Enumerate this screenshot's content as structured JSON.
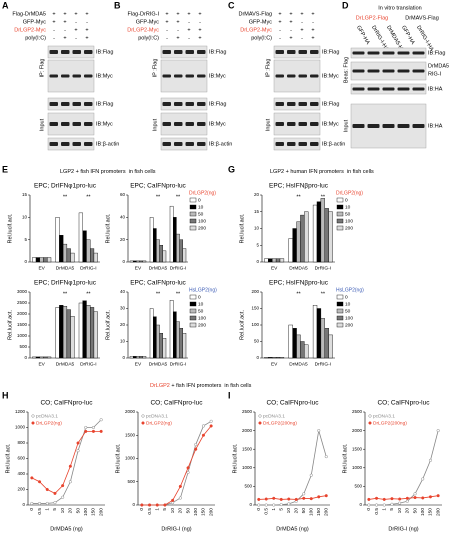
{
  "panel_letters": [
    "A",
    "B",
    "C",
    "D",
    "E",
    "G",
    "H",
    "I"
  ],
  "blots": [
    {
      "rows": [
        {
          "label": "Flag-DrMDA5",
          "signs": [
            "+",
            "+",
            "+",
            "+"
          ]
        },
        {
          "label": "GFP-Myc",
          "signs": [
            "+",
            "+",
            "-",
            "-"
          ]
        },
        {
          "label": "DrLGP2-Myc",
          "color": "#e8432d",
          "signs": [
            "-",
            "-",
            "+",
            "+"
          ]
        },
        {
          "label": "poly(I:C)",
          "signs": [
            "-",
            "+",
            "-",
            "+"
          ]
        }
      ],
      "side": [
        "IP: Flag",
        "Input"
      ],
      "ib": [
        "IB:Flag",
        "IB:Myc",
        "IB:Flag",
        "IB:Myc",
        "IB:β-actin"
      ]
    },
    {
      "rows": [
        {
          "label": "Flag-DrRIG-I",
          "signs": [
            "+",
            "+",
            "+",
            "+"
          ]
        },
        {
          "label": "GFP-Myc",
          "signs": [
            "+",
            "+",
            "-",
            "-"
          ]
        },
        {
          "label": "DrLGP2-Myc",
          "color": "#e8432d",
          "signs": [
            "-",
            "-",
            "+",
            "+"
          ]
        },
        {
          "label": "poly(I:C)",
          "signs": [
            "-",
            "+",
            "-",
            "+"
          ]
        }
      ],
      "side": [
        "IP :Flag",
        "Input"
      ],
      "ib": [
        "IB:Flag",
        "IB:Myc",
        "IB:Flag",
        "IB:Myc",
        "IB:β-actin"
      ]
    },
    {
      "rows": [
        {
          "label": "DrMAVS-Flag",
          "signs": [
            "+",
            "+",
            "+",
            "+"
          ]
        },
        {
          "label": "GFP-Myc",
          "signs": [
            "+",
            "+",
            "-",
            "-"
          ]
        },
        {
          "label": "DrLGP2-Myc",
          "color": "#e8432d",
          "signs": [
            "-",
            "-",
            "+",
            "+"
          ]
        },
        {
          "label": "poly(I:C)",
          "signs": [
            "-",
            "+",
            "-",
            "+"
          ]
        }
      ],
      "side": [
        "IP :Flag",
        "Input"
      ],
      "ib": [
        "IB:Flag",
        "IB:Myc",
        "IB:Flag",
        "IB:Myc",
        "IB:β-actin"
      ]
    }
  ],
  "translation": {
    "title": "In vitro translation",
    "groups": [
      {
        "text": "DrLGP2-Flag",
        "color": "#e8432d"
      },
      {
        "text": "DrMAVS-Flag",
        "color": "#000000"
      }
    ],
    "columns": [
      "GFP-HA",
      "DrRIG-I-HA",
      "DrMDA5-HA",
      "GFP-HA",
      "DrRIG-I-HA"
    ],
    "ib": [
      "IB:Flag",
      "DrMDA5",
      "RIG-I",
      "IB:HA",
      "IB:HA"
    ],
    "side": [
      "Beas: Flag",
      "Input"
    ]
  },
  "sections": [
    {
      "text": "LGP2 + fish IFN promoters  in fish cells"
    },
    {
      "text": "LGP2 + human IFN promoters  in fish cells"
    },
    {
      "highlight": "DrLGP2",
      "text": " + fish IFN promoters  in fish cells"
    }
  ],
  "chart_data": [
    {
      "type": "bar",
      "title": "EPC; DrIFNφ1pro-luc",
      "ylabel": "Rel.lucif.act.",
      "categories": [
        "EV",
        "DrMDA5",
        "DrRIG-I"
      ],
      "ylim": [
        0,
        15
      ],
      "yticks": [
        0,
        5,
        10,
        15
      ],
      "annotations": [
        "**",
        "**"
      ],
      "series": [
        {
          "color": "#ffffff",
          "values": [
            1,
            10,
            11
          ]
        },
        {
          "color": "#000000",
          "values": [
            1,
            6,
            7
          ]
        },
        {
          "color": "#bbbbbb",
          "values": [
            1,
            4,
            5
          ]
        },
        {
          "color": "#777777",
          "values": [
            1,
            3,
            3
          ]
        },
        {
          "color": "#dddddd",
          "values": [
            1,
            2,
            2
          ]
        }
      ]
    },
    {
      "type": "bar",
      "title": "EPC; CaIFNpro-luc",
      "ylabel": "Rel.lucif.act.",
      "categories": [
        "EV",
        "DrMDA5",
        "DrRIG-I"
      ],
      "ylim": [
        0,
        60
      ],
      "yticks": [
        0,
        20,
        40,
        60
      ],
      "annotations": [
        "**",
        "**"
      ],
      "legend_title": "DrLGP2(ng)",
      "legend_title_color": "#e8432d",
      "series": [
        {
          "name": "0",
          "color": "#ffffff",
          "values": [
            1,
            40,
            50
          ]
        },
        {
          "name": "10",
          "color": "#000000",
          "values": [
            1,
            30,
            40
          ]
        },
        {
          "name": "50",
          "color": "#bbbbbb",
          "values": [
            1,
            20,
            25
          ]
        },
        {
          "name": "100",
          "color": "#777777",
          "values": [
            1,
            15,
            20
          ]
        },
        {
          "name": "200",
          "color": "#dddddd",
          "values": [
            1,
            10,
            12
          ]
        }
      ]
    },
    {
      "type": "bar",
      "title": "EPC; DrIFNφ1pro-luc",
      "ylabel": "Rel.lucif.act.",
      "categories": [
        "EV",
        "DrMDA5",
        "DrRIG-I"
      ],
      "ylim": [
        0,
        3000
      ],
      "yticks": [
        0,
        500,
        1000,
        1500,
        2000,
        2500,
        3000
      ],
      "annotations": [
        "**",
        "**"
      ],
      "series": [
        {
          "color": "#ffffff",
          "values": [
            50,
            2300,
            2500
          ]
        },
        {
          "color": "#000000",
          "values": [
            50,
            2400,
            2600
          ]
        },
        {
          "color": "#bbbbbb",
          "values": [
            50,
            2350,
            2400
          ]
        },
        {
          "color": "#777777",
          "values": [
            50,
            2200,
            2300
          ]
        },
        {
          "color": "#dddddd",
          "values": [
            50,
            1900,
            2100
          ]
        }
      ]
    },
    {
      "type": "bar",
      "title": "EPC; CaIFNpro-luc",
      "ylabel": "Rel.lucif.act.",
      "categories": [
        "EV",
        "DrMDA5",
        "DrRIG-I"
      ],
      "ylim": [
        0,
        40
      ],
      "yticks": [
        0,
        10,
        20,
        30,
        40
      ],
      "annotations": [
        "**",
        "**"
      ],
      "legend_title": "HsLGP2(ng)",
      "legend_title_color": "#3b5bb5",
      "series": [
        {
          "name": "0",
          "color": "#ffffff",
          "values": [
            1,
            30,
            35
          ]
        },
        {
          "name": "10",
          "color": "#000000",
          "values": [
            1,
            25,
            28
          ]
        },
        {
          "name": "50",
          "color": "#bbbbbb",
          "values": [
            1,
            20,
            22
          ]
        },
        {
          "name": "100",
          "color": "#777777",
          "values": [
            1,
            15,
            18
          ]
        },
        {
          "name": "200",
          "color": "#dddddd",
          "values": [
            1,
            12,
            15
          ]
        }
      ]
    },
    {
      "type": "bar",
      "title": "EPC; HsIFNβpro-luc",
      "ylabel": "Rel.lucif.act.",
      "categories": [
        "EV",
        "DrMDA5",
        "DrRIG-I"
      ],
      "ylim": [
        0,
        20
      ],
      "yticks": [
        0,
        5,
        10,
        15,
        20
      ],
      "annotations": [
        "**",
        "**"
      ],
      "legend_title": "DrLGP2(ng)",
      "legend_title_color": "#e8432d",
      "series": [
        {
          "name": "0",
          "color": "#ffffff",
          "values": [
            1,
            7,
            17
          ]
        },
        {
          "name": "10",
          "color": "#000000",
          "values": [
            1,
            10,
            18
          ]
        },
        {
          "name": "50",
          "color": "#bbbbbb",
          "values": [
            1,
            12,
            19
          ]
        },
        {
          "name": "100",
          "color": "#777777",
          "values": [
            1,
            14,
            16
          ]
        },
        {
          "name": "200",
          "color": "#dddddd",
          "values": [
            1,
            15,
            15
          ]
        }
      ]
    },
    {
      "type": "bar",
      "title": "EPC; HsIFNβpro-luc",
      "ylabel": "Rel.lucif.act.",
      "categories": [
        "EV",
        "DrMDA5",
        "DrRIG-I"
      ],
      "ylim": [
        0,
        200
      ],
      "yticks": [
        0,
        50,
        100,
        150,
        200
      ],
      "annotations": [
        "**",
        "**"
      ],
      "legend_title": "HsLGP2(ng)",
      "legend_title_color": "#3b5bb5",
      "series": [
        {
          "name": "0",
          "color": "#ffffff",
          "values": [
            2,
            100,
            160
          ]
        },
        {
          "name": "10",
          "color": "#000000",
          "values": [
            2,
            90,
            150
          ]
        },
        {
          "name": "50",
          "color": "#bbbbbb",
          "values": [
            2,
            70,
            120
          ]
        },
        {
          "name": "100",
          "color": "#777777",
          "values": [
            2,
            50,
            90
          ]
        },
        {
          "name": "200",
          "color": "#dddddd",
          "values": [
            2,
            40,
            70
          ]
        }
      ]
    },
    {
      "type": "line",
      "title": "CO; CaIFNpro-luc",
      "ylabel": "Rel.lucif.act.",
      "xlabel": "DrMDA5 (ng)",
      "categories": [
        "0",
        "0.5",
        "1",
        "5",
        "10",
        "20",
        "50",
        "100",
        "150",
        "200"
      ],
      "ylim": [
        0,
        1200
      ],
      "yticks": [
        0,
        200,
        400,
        600,
        800,
        1000,
        1200
      ],
      "series": [
        {
          "name": "pcDNA3.1",
          "color": "#888888",
          "values": [
            20,
            20,
            20,
            30,
            100,
            300,
            700,
            1000,
            1000,
            1100
          ]
        },
        {
          "name": "DrLGP2(ng)",
          "color": "#e8432d",
          "values": [
            350,
            300,
            200,
            150,
            250,
            500,
            800,
            950,
            950,
            950
          ]
        }
      ]
    },
    {
      "type": "line",
      "title": "CO; CaIFNpro-luc",
      "ylabel": "Rel.lucif.act.",
      "xlabel": "DrRIG-I (ng)",
      "categories": [
        "0",
        "0.5",
        "1",
        "5",
        "10",
        "20",
        "50",
        "100",
        "150",
        "200"
      ],
      "ylim": [
        0,
        2000
      ],
      "yticks": [
        0,
        500,
        1000,
        1500,
        2000
      ],
      "series": [
        {
          "name": "pcDNA3.1",
          "color": "#888888",
          "values": [
            0,
            0,
            0,
            0,
            50,
            150,
            700,
            1300,
            1700,
            1800
          ]
        },
        {
          "name": "DrLGP2(ng)",
          "color": "#e8432d",
          "values": [
            0,
            0,
            0,
            0,
            100,
            400,
            800,
            1200,
            1500,
            1700
          ]
        }
      ]
    },
    {
      "type": "line",
      "title": "CO; CaIFNpro-luc",
      "ylabel": "Rel.lucif.act.",
      "xlabel": "DrMDA5 (ng)",
      "categories": [
        "0",
        "0.5",
        "1",
        "5",
        "10",
        "20",
        "50",
        "100",
        "150",
        "200"
      ],
      "ylim": [
        0,
        2500
      ],
      "yticks": [
        0,
        500,
        1000,
        1500,
        2000,
        2500
      ],
      "series": [
        {
          "name": "pcDNA3.1",
          "color": "#888888",
          "values": [
            0,
            0,
            0,
            10,
            30,
            100,
            300,
            800,
            2000,
            1300
          ]
        },
        {
          "name": "DrLGP2(200ng)",
          "color": "#e8432d",
          "values": [
            150,
            160,
            180,
            150,
            160,
            150,
            180,
            170,
            220,
            250
          ]
        }
      ]
    },
    {
      "type": "line",
      "title": "CO; CaIFNpro-luc",
      "ylabel": "Rel.lucif.act.",
      "xlabel": "DrRIG-I (ng)",
      "categories": [
        "0",
        "0.5",
        "1",
        "5",
        "10",
        "20",
        "50",
        "100",
        "150",
        "200"
      ],
      "ylim": [
        0,
        2500
      ],
      "yticks": [
        0,
        500,
        1000,
        1500,
        2000,
        2500
      ],
      "series": [
        {
          "name": "pcDNA3.1",
          "color": "#888888",
          "values": [
            0,
            0,
            0,
            20,
            50,
            100,
            300,
            700,
            1200,
            2000
          ]
        },
        {
          "name": "DrLGP2(200ng)",
          "color": "#e8432d",
          "values": [
            150,
            180,
            150,
            170,
            160,
            180,
            200,
            190,
            220,
            250
          ]
        }
      ]
    }
  ]
}
